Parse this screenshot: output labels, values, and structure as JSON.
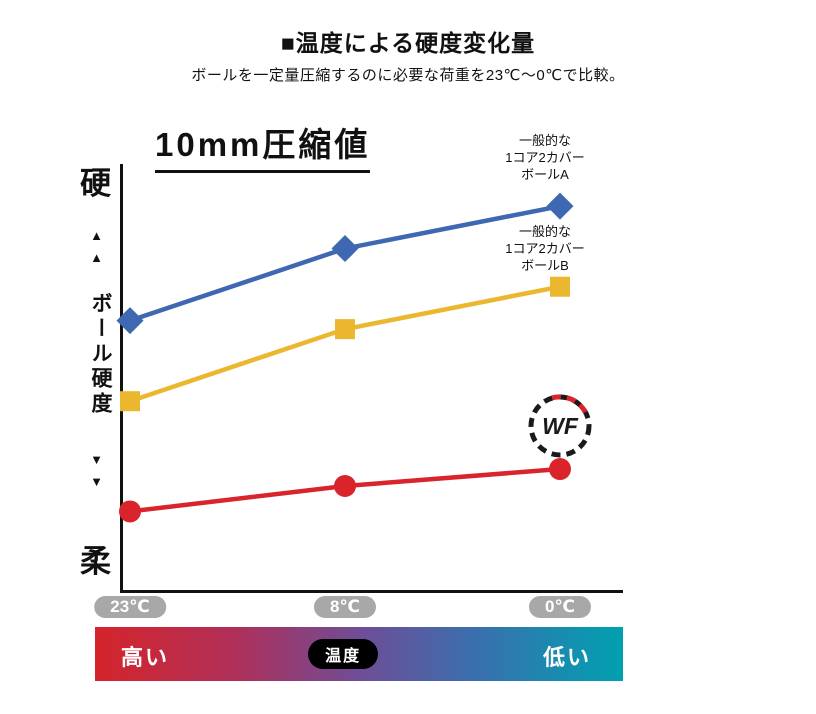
{
  "header": {
    "title": "■温度による硬度変化量",
    "subtitle": "ボールを一定量圧縮するのに必要な荷重を23℃～0℃で比較。"
  },
  "chart": {
    "heading": "10mm圧縮値",
    "y_axis": {
      "top_label": "硬",
      "bottom_label": "柔",
      "axis_title": "ボール硬度",
      "up_arrows": "▲▲",
      "down_arrows": "▼▼"
    },
    "x_ticks": [
      "23℃",
      "8℃",
      "0℃"
    ],
    "legendA": [
      "一般的な",
      "1コア2カバー",
      "ボールA"
    ],
    "legendB": [
      "一般的な",
      "1コア2カバー",
      "ボールB"
    ],
    "logo": "WF"
  },
  "temp_bar": {
    "left": "高い",
    "center": "温度",
    "right": "低い",
    "gradient_colors": [
      "#d5242a",
      "#6f4d96",
      "#00a1b0"
    ]
  },
  "colors": {
    "series_a_blue": "#3e68b2",
    "series_b_yellow": "#eab72f",
    "series_wf_red": "#d8242a",
    "tick_pill_gray": "#a8a8a8",
    "axis_black": "#111111"
  },
  "chart_data": {
    "type": "line",
    "title": "10mm圧縮値",
    "categories": [
      "23℃",
      "8℃",
      "0℃"
    ],
    "series": [
      {
        "name": "一般的な1コア2カバーボールA",
        "marker": "diamond",
        "color": "#3e68b2",
        "values": [
          64,
          81,
          91
        ]
      },
      {
        "name": "一般的な1コア2カバーボールB",
        "marker": "square",
        "color": "#eab72f",
        "values": [
          45,
          62,
          72
        ]
      },
      {
        "name": "WF",
        "marker": "circle",
        "color": "#d8242a",
        "values": [
          19,
          25,
          29
        ]
      }
    ],
    "xlabel": "温度（高い→低い）",
    "ylabel": "ボール硬度（柔→硬）",
    "ylim": [
      0,
      100
    ],
    "grid": false,
    "legend_position": "right-of-points"
  }
}
